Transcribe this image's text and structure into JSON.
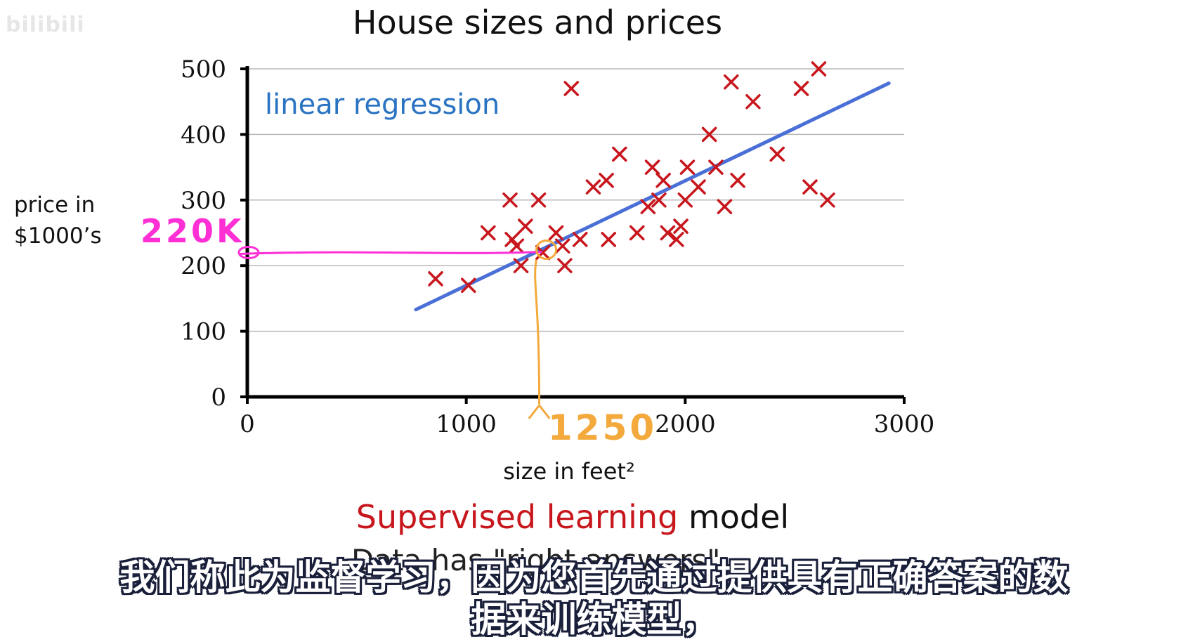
{
  "watermark": "bilibili",
  "chart_data": {
    "type": "scatter",
    "title": "House sizes and prices",
    "xlabel": "size in feet²",
    "ylabel": [
      "price in",
      "$1000’s"
    ],
    "xlim": [
      0,
      3000
    ],
    "ylim": [
      0,
      500
    ],
    "x_ticks": [
      "0",
      "1000",
      "2000",
      "3000"
    ],
    "y_ticks": [
      "0",
      "100",
      "200",
      "300",
      "400",
      "500"
    ],
    "grid": "horizontal",
    "colors": {
      "points": "#c8161d",
      "line": "#4a6fd6",
      "line_label": "#2a73c2",
      "annotation_x": "#f3a93c",
      "annotation_y": "#ff2fd6"
    },
    "points": [
      [
        860,
        180
      ],
      [
        1010,
        170
      ],
      [
        1100,
        250
      ],
      [
        1200,
        300
      ],
      [
        1210,
        240
      ],
      [
        1230,
        230
      ],
      [
        1250,
        200
      ],
      [
        1270,
        260
      ],
      [
        1330,
        300
      ],
      [
        1350,
        220
      ],
      [
        1410,
        250
      ],
      [
        1440,
        230
      ],
      [
        1450,
        200
      ],
      [
        1480,
        470
      ],
      [
        1520,
        240
      ],
      [
        1580,
        320
      ],
      [
        1640,
        330
      ],
      [
        1650,
        240
      ],
      [
        1700,
        370
      ],
      [
        1780,
        250
      ],
      [
        1830,
        290
      ],
      [
        1850,
        350
      ],
      [
        1880,
        300
      ],
      [
        1900,
        330
      ],
      [
        1920,
        250
      ],
      [
        1960,
        240
      ],
      [
        1980,
        260
      ],
      [
        2000,
        300
      ],
      [
        2010,
        350
      ],
      [
        2060,
        320
      ],
      [
        2110,
        400
      ],
      [
        2140,
        350
      ],
      [
        2180,
        290
      ],
      [
        2210,
        480
      ],
      [
        2240,
        330
      ],
      [
        2310,
        450
      ],
      [
        2420,
        370
      ],
      [
        2530,
        470
      ],
      [
        2570,
        320
      ],
      [
        2610,
        500
      ],
      [
        2650,
        300
      ]
    ],
    "regression_line": {
      "label": "linear regression",
      "x": [
        770,
        2930
      ],
      "y": [
        133,
        478
      ]
    },
    "annotations": [
      {
        "axis": "x",
        "value": 1250,
        "label": "1250"
      },
      {
        "axis": "y",
        "value": 220,
        "label": "220K"
      }
    ]
  },
  "caption": {
    "red": "Supervised learning",
    "black": "model",
    "line2_partial": "Data has \"right answers\""
  },
  "subtitles": {
    "line1": "我们称此为监督学习，因为您首先通过提供具有正确答案的数",
    "line2": "据来训练模型，"
  }
}
